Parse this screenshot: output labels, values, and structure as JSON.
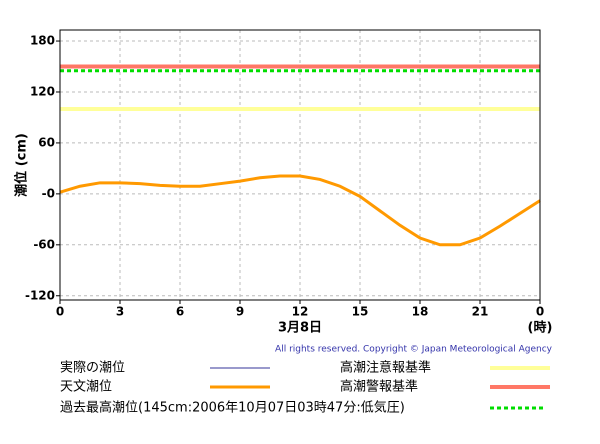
{
  "chart_data": {
    "type": "line",
    "y_label": "潮位 (cm)",
    "x_label": "3月8日",
    "x_unit": "(時)",
    "copyright": "All rights reserved. Copyright © Japan Meteorological Agency",
    "x": [
      0,
      1,
      2,
      3,
      4,
      5,
      6,
      7,
      8,
      9,
      10,
      11,
      12,
      13,
      14,
      15,
      16,
      17,
      18,
      19,
      20,
      21,
      22,
      23,
      24
    ],
    "series": [
      {
        "name": "実際の潮位",
        "color": "#333399",
        "values": [
          null,
          null,
          null,
          null,
          null,
          null,
          null,
          null,
          null,
          null,
          null,
          null,
          null,
          null,
          null,
          null,
          null,
          null,
          null,
          null,
          null,
          null,
          null,
          null,
          null
        ]
      },
      {
        "name": "天文潮位",
        "color": "#ff9900",
        "values": [
          2,
          9,
          13,
          13,
          12,
          10,
          9,
          9,
          12,
          15,
          19,
          21,
          21,
          17,
          9,
          -3,
          -20,
          -37,
          -52,
          -60,
          -60,
          -52,
          -38,
          -23,
          -8
        ]
      }
    ],
    "reference_lines": [
      {
        "name": "高潮注意報基準",
        "color": "#ffff99",
        "value": 100,
        "dashed": false
      },
      {
        "name": "高潮警報基準",
        "color": "#ff7766",
        "value": 150,
        "dashed": false
      },
      {
        "name": "過去最高潮位(145cm:2006年10月07日03時47分:低気圧)",
        "color": "#00dd00",
        "value": 145,
        "dashed": true
      }
    ],
    "xlim": [
      0,
      24
    ],
    "xticks": [
      0,
      3,
      6,
      9,
      12,
      15,
      18,
      21,
      {
        "value": 24,
        "label": "0"
      }
    ],
    "ylim": [
      -125,
      193
    ],
    "yticks": [
      180,
      120,
      60,
      {
        "value": 0,
        "label": "-0"
      },
      -60,
      -120
    ],
    "grid": true
  }
}
